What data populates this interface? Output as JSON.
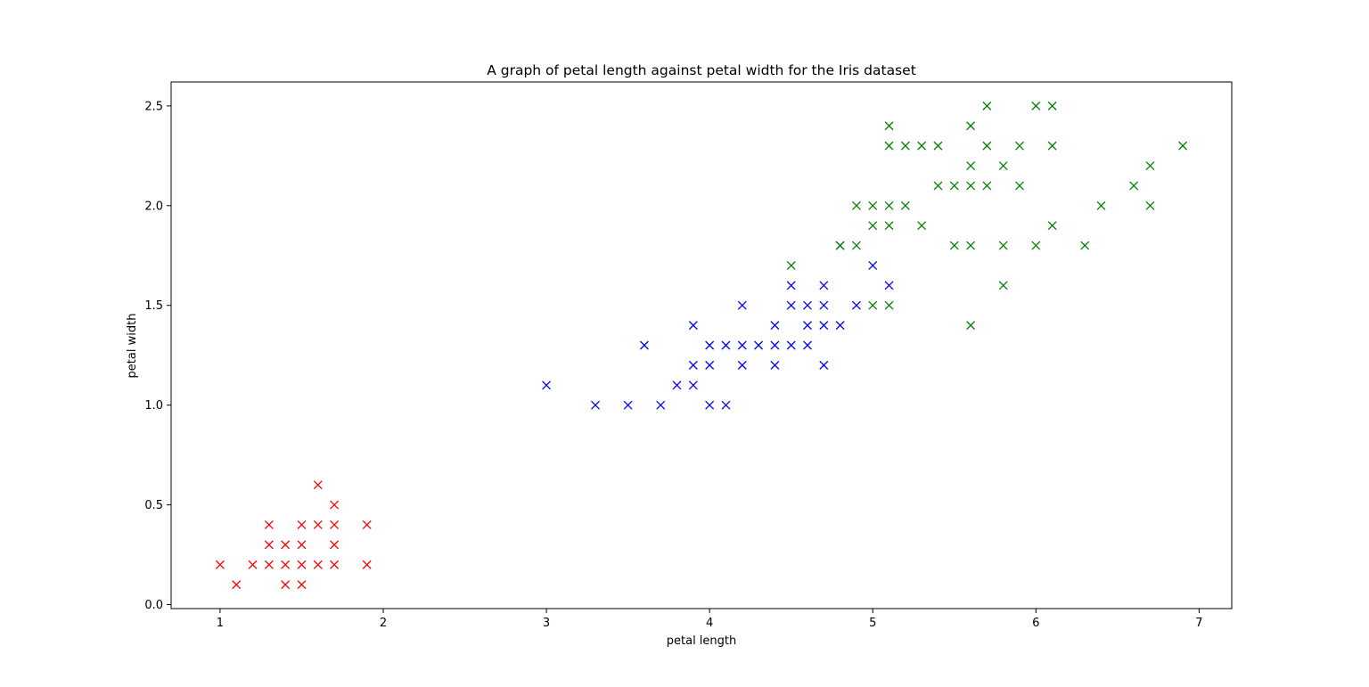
{
  "chart_data": {
    "type": "scatter",
    "title": "A graph of petal length against petal width for the Iris dataset",
    "xlabel": "petal length",
    "ylabel": "petal width",
    "xlim": [
      0.7,
      7.2
    ],
    "ylim": [
      -0.02,
      2.62
    ],
    "xticks": [
      1,
      2,
      3,
      4,
      5,
      6,
      7
    ],
    "xtick_labels": [
      "1",
      "2",
      "3",
      "4",
      "5",
      "6",
      "7"
    ],
    "yticks": [
      0.0,
      0.5,
      1.0,
      1.5,
      2.0,
      2.5
    ],
    "ytick_labels": [
      "0.0",
      "0.5",
      "1.0",
      "1.5",
      "2.0",
      "2.5"
    ],
    "grid": false,
    "legend": false,
    "marker": "x",
    "series": [
      {
        "color": "#ff0000",
        "points": [
          [
            1.0,
            0.2
          ],
          [
            1.1,
            0.1
          ],
          [
            1.2,
            0.2
          ],
          [
            1.3,
            0.2
          ],
          [
            1.3,
            0.3
          ],
          [
            1.3,
            0.4
          ],
          [
            1.4,
            0.1
          ],
          [
            1.4,
            0.2
          ],
          [
            1.4,
            0.3
          ],
          [
            1.5,
            0.1
          ],
          [
            1.5,
            0.2
          ],
          [
            1.5,
            0.3
          ],
          [
            1.5,
            0.4
          ],
          [
            1.6,
            0.2
          ],
          [
            1.6,
            0.4
          ],
          [
            1.6,
            0.6
          ],
          [
            1.7,
            0.2
          ],
          [
            1.7,
            0.3
          ],
          [
            1.7,
            0.4
          ],
          [
            1.7,
            0.5
          ],
          [
            1.9,
            0.2
          ],
          [
            1.9,
            0.4
          ]
        ]
      },
      {
        "color": "#0000ff",
        "points": [
          [
            3.0,
            1.1
          ],
          [
            3.3,
            1.0
          ],
          [
            3.5,
            1.0
          ],
          [
            3.6,
            1.3
          ],
          [
            3.7,
            1.0
          ],
          [
            3.8,
            1.1
          ],
          [
            3.9,
            1.1
          ],
          [
            3.9,
            1.2
          ],
          [
            3.9,
            1.4
          ],
          [
            4.0,
            1.0
          ],
          [
            4.0,
            1.2
          ],
          [
            4.0,
            1.3
          ],
          [
            4.1,
            1.0
          ],
          [
            4.1,
            1.3
          ],
          [
            4.2,
            1.2
          ],
          [
            4.2,
            1.3
          ],
          [
            4.2,
            1.5
          ],
          [
            4.3,
            1.3
          ],
          [
            4.4,
            1.2
          ],
          [
            4.4,
            1.3
          ],
          [
            4.4,
            1.4
          ],
          [
            4.5,
            1.3
          ],
          [
            4.5,
            1.5
          ],
          [
            4.5,
            1.6
          ],
          [
            4.6,
            1.3
          ],
          [
            4.6,
            1.4
          ],
          [
            4.6,
            1.5
          ],
          [
            4.7,
            1.2
          ],
          [
            4.7,
            1.4
          ],
          [
            4.7,
            1.5
          ],
          [
            4.7,
            1.6
          ],
          [
            4.8,
            1.4
          ],
          [
            4.8,
            1.8
          ],
          [
            4.9,
            1.5
          ],
          [
            5.0,
            1.7
          ],
          [
            5.1,
            1.6
          ]
        ]
      },
      {
        "color": "#008000",
        "points": [
          [
            4.5,
            1.7
          ],
          [
            4.8,
            1.8
          ],
          [
            4.9,
            1.8
          ],
          [
            4.9,
            2.0
          ],
          [
            5.0,
            1.5
          ],
          [
            5.0,
            1.9
          ],
          [
            5.0,
            2.0
          ],
          [
            5.1,
            1.5
          ],
          [
            5.1,
            1.9
          ],
          [
            5.1,
            2.0
          ],
          [
            5.1,
            2.3
          ],
          [
            5.1,
            2.4
          ],
          [
            5.2,
            2.0
          ],
          [
            5.2,
            2.3
          ],
          [
            5.3,
            1.9
          ],
          [
            5.3,
            2.3
          ],
          [
            5.4,
            2.1
          ],
          [
            5.4,
            2.3
          ],
          [
            5.5,
            1.8
          ],
          [
            5.5,
            2.1
          ],
          [
            5.6,
            1.4
          ],
          [
            5.6,
            1.8
          ],
          [
            5.6,
            2.1
          ],
          [
            5.6,
            2.2
          ],
          [
            5.6,
            2.4
          ],
          [
            5.7,
            2.1
          ],
          [
            5.7,
            2.3
          ],
          [
            5.7,
            2.5
          ],
          [
            5.8,
            1.6
          ],
          [
            5.8,
            1.8
          ],
          [
            5.8,
            2.2
          ],
          [
            5.9,
            2.1
          ],
          [
            5.9,
            2.3
          ],
          [
            6.0,
            1.8
          ],
          [
            6.0,
            2.5
          ],
          [
            6.1,
            1.9
          ],
          [
            6.1,
            2.3
          ],
          [
            6.1,
            2.5
          ],
          [
            6.3,
            1.8
          ],
          [
            6.4,
            2.0
          ],
          [
            6.6,
            2.1
          ],
          [
            6.7,
            2.0
          ],
          [
            6.7,
            2.2
          ],
          [
            6.9,
            2.3
          ]
        ]
      }
    ]
  }
}
